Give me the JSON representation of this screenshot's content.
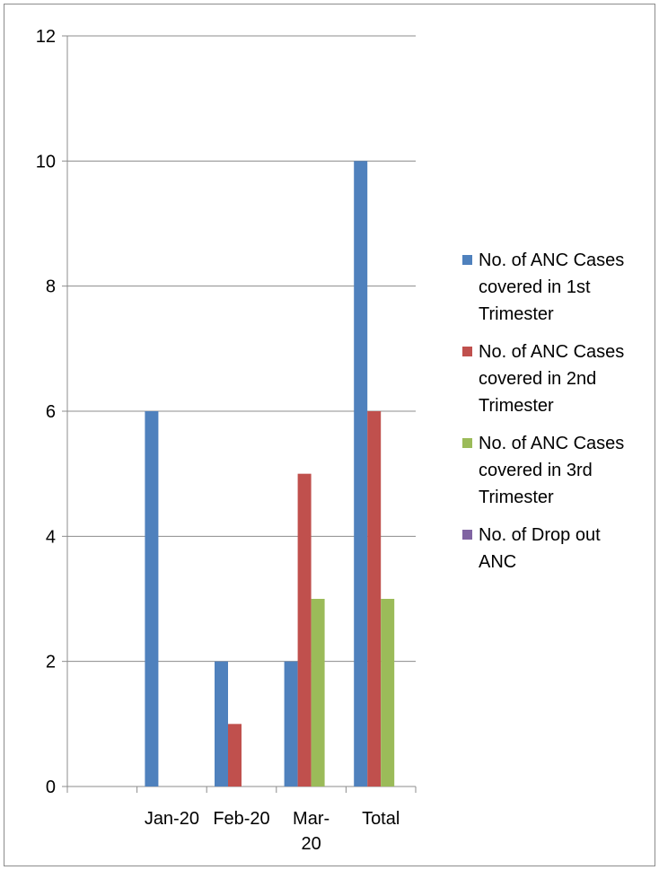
{
  "chart_data": {
    "type": "bar",
    "categories": [
      "",
      "Jan-20",
      "Feb-20",
      "Mar-20",
      "Total"
    ],
    "category_labels": [
      [],
      [
        "Jan-20"
      ],
      [
        "Feb-20"
      ],
      [
        "Mar-",
        "20"
      ],
      [
        "Total"
      ]
    ],
    "series": [
      {
        "name": "No. of ANC Cases covered in 1st Trimester",
        "color": "#4f81bd",
        "values": [
          0,
          6,
          2,
          2,
          10
        ]
      },
      {
        "name": "No. of ANC Cases covered in 2nd Trimester",
        "color": "#c0504d",
        "values": [
          0,
          0,
          1,
          5,
          6
        ]
      },
      {
        "name": "No. of ANC Cases covered in 3rd Trimester",
        "color": "#9bbb59",
        "values": [
          0,
          0,
          0,
          3,
          3
        ]
      },
      {
        "name": "No. of Drop out ANC",
        "color": "#8064a2",
        "values": [
          0,
          0,
          0,
          0,
          0
        ]
      }
    ],
    "legend_lines": [
      [
        "No. of ANC Cases",
        "covered in 1st",
        "Trimester"
      ],
      [
        "No. of ANC Cases",
        "covered in 2nd",
        "Trimester"
      ],
      [
        "No. of ANC Cases",
        "covered in 3rd",
        "Trimester"
      ],
      [
        "No. of Drop out",
        "ANC"
      ]
    ],
    "ylim": [
      0,
      12
    ],
    "yticks": [
      "0",
      "2",
      "4",
      "6",
      "8",
      "10",
      "12"
    ],
    "grid": true,
    "legend_position": "right",
    "title": "",
    "xlabel": "",
    "ylabel": ""
  }
}
